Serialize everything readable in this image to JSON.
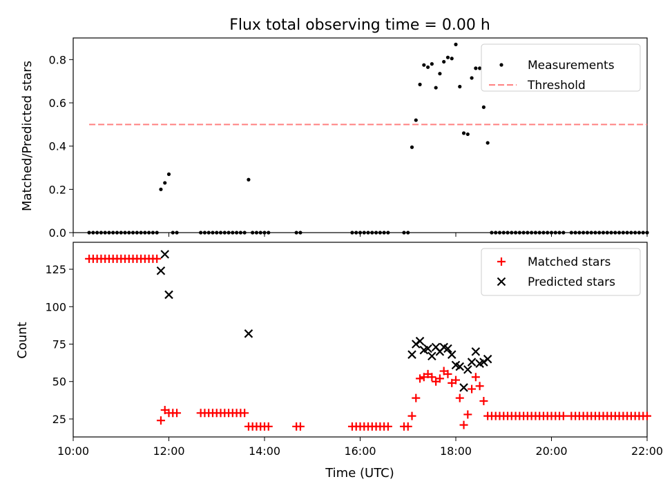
{
  "chart_data": [
    {
      "type": "scatter",
      "title": "Flux total observing time = 0.00 h",
      "xlabel": "",
      "ylabel": "Matched/Predicted stars",
      "xlim": [
        "10:00",
        "22:00"
      ],
      "ylim": [
        0,
        0.9
      ],
      "yticks": [
        "0.0",
        "0.2",
        "0.4",
        "0.6",
        "0.8"
      ],
      "legend_position": "top-right",
      "series": [
        {
          "name": "Measurements",
          "color": "#000000",
          "marker": "dot",
          "points": [
            [
              "10:20",
              0
            ],
            [
              "10:25",
              0
            ],
            [
              "10:30",
              0
            ],
            [
              "10:35",
              0
            ],
            [
              "10:40",
              0
            ],
            [
              "10:45",
              0
            ],
            [
              "10:50",
              0
            ],
            [
              "10:55",
              0
            ],
            [
              "11:00",
              0
            ],
            [
              "11:05",
              0
            ],
            [
              "11:10",
              0
            ],
            [
              "11:15",
              0
            ],
            [
              "11:20",
              0
            ],
            [
              "11:25",
              0
            ],
            [
              "11:30",
              0
            ],
            [
              "11:35",
              0
            ],
            [
              "11:40",
              0
            ],
            [
              "11:45",
              0
            ],
            [
              "11:50",
              0.2
            ],
            [
              "11:55",
              0.23
            ],
            [
              "12:00",
              0.27
            ],
            [
              "12:05",
              0
            ],
            [
              "12:10",
              0
            ],
            [
              "12:40",
              0
            ],
            [
              "12:45",
              0
            ],
            [
              "12:50",
              0
            ],
            [
              "12:55",
              0
            ],
            [
              "13:00",
              0
            ],
            [
              "13:05",
              0
            ],
            [
              "13:10",
              0
            ],
            [
              "13:15",
              0
            ],
            [
              "13:20",
              0
            ],
            [
              "13:25",
              0
            ],
            [
              "13:30",
              0
            ],
            [
              "13:35",
              0
            ],
            [
              "13:40",
              0.245
            ],
            [
              "13:45",
              0
            ],
            [
              "13:50",
              0
            ],
            [
              "13:55",
              0
            ],
            [
              "14:00",
              0
            ],
            [
              "14:05",
              0
            ],
            [
              "14:40",
              0
            ],
            [
              "14:45",
              0
            ],
            [
              "15:50",
              0
            ],
            [
              "15:55",
              0
            ],
            [
              "16:00",
              0
            ],
            [
              "16:05",
              0
            ],
            [
              "16:10",
              0
            ],
            [
              "16:15",
              0
            ],
            [
              "16:20",
              0
            ],
            [
              "16:25",
              0
            ],
            [
              "16:30",
              0
            ],
            [
              "16:35",
              0
            ],
            [
              "16:55",
              0
            ],
            [
              "17:00",
              0
            ],
            [
              "17:05",
              0.395
            ],
            [
              "17:10",
              0.52
            ],
            [
              "17:15",
              0.685
            ],
            [
              "17:20",
              0.775
            ],
            [
              "17:25",
              0.765
            ],
            [
              "17:30",
              0.78
            ],
            [
              "17:35",
              0.67
            ],
            [
              "17:40",
              0.735
            ],
            [
              "17:45",
              0.79
            ],
            [
              "17:50",
              0.81
            ],
            [
              "17:55",
              0.805
            ],
            [
              "18:00",
              0.87
            ],
            [
              "18:05",
              0.675
            ],
            [
              "18:10",
              0.46
            ],
            [
              "18:15",
              0.455
            ],
            [
              "18:20",
              0.715
            ],
            [
              "18:25",
              0.76
            ],
            [
              "18:30",
              0.76
            ],
            [
              "18:35",
              0.58
            ],
            [
              "18:40",
              0.415
            ],
            [
              "18:45",
              0
            ],
            [
              "18:50",
              0
            ],
            [
              "18:55",
              0
            ],
            [
              "19:00",
              0
            ],
            [
              "19:05",
              0
            ],
            [
              "19:10",
              0
            ],
            [
              "19:15",
              0
            ],
            [
              "19:20",
              0
            ],
            [
              "19:25",
              0
            ],
            [
              "19:30",
              0
            ],
            [
              "19:35",
              0
            ],
            [
              "19:40",
              0
            ],
            [
              "19:45",
              0
            ],
            [
              "19:50",
              0
            ],
            [
              "19:55",
              0
            ],
            [
              "20:00",
              0
            ],
            [
              "20:05",
              0
            ],
            [
              "20:10",
              0
            ],
            [
              "20:15",
              0
            ],
            [
              "20:25",
              0
            ],
            [
              "20:30",
              0
            ],
            [
              "20:35",
              0
            ],
            [
              "20:40",
              0
            ],
            [
              "20:45",
              0
            ],
            [
              "20:50",
              0
            ],
            [
              "20:55",
              0
            ],
            [
              "21:00",
              0
            ],
            [
              "21:05",
              0
            ],
            [
              "21:10",
              0
            ],
            [
              "21:15",
              0
            ],
            [
              "21:20",
              0
            ],
            [
              "21:25",
              0
            ],
            [
              "21:30",
              0
            ],
            [
              "21:35",
              0
            ],
            [
              "21:40",
              0
            ],
            [
              "21:45",
              0
            ],
            [
              "21:50",
              0
            ],
            [
              "21:55",
              0
            ],
            [
              "22:00",
              0
            ]
          ]
        },
        {
          "name": "Threshold",
          "color": "#ff8080",
          "line_style": "dashed",
          "points": [
            [
              "10:20",
              0.5
            ],
            [
              "22:00",
              0.5
            ]
          ]
        }
      ]
    },
    {
      "type": "scatter",
      "title": "",
      "xlabel": "Time (UTC)",
      "ylabel": "Count",
      "xlim": [
        "10:00",
        "22:00"
      ],
      "ylim": [
        13,
        143
      ],
      "yticks": [
        "25",
        "50",
        "75",
        "100",
        "125"
      ],
      "xticks": [
        "10:00",
        "12:00",
        "14:00",
        "16:00",
        "18:00",
        "20:00",
        "22:00"
      ],
      "legend_position": "top-right",
      "series": [
        {
          "name": "Matched stars",
          "color": "#ff0000",
          "marker": "plus",
          "points": [
            [
              "10:20",
              132
            ],
            [
              "10:25",
              132
            ],
            [
              "10:30",
              132
            ],
            [
              "10:35",
              132
            ],
            [
              "10:40",
              132
            ],
            [
              "10:45",
              132
            ],
            [
              "10:50",
              132
            ],
            [
              "10:55",
              132
            ],
            [
              "11:00",
              132
            ],
            [
              "11:05",
              132
            ],
            [
              "11:10",
              132
            ],
            [
              "11:15",
              132
            ],
            [
              "11:20",
              132
            ],
            [
              "11:25",
              132
            ],
            [
              "11:30",
              132
            ],
            [
              "11:35",
              132
            ],
            [
              "11:40",
              132
            ],
            [
              "11:45",
              132
            ],
            [
              "11:50",
              24
            ],
            [
              "11:55",
              31
            ],
            [
              "12:00",
              29
            ],
            [
              "12:05",
              29
            ],
            [
              "12:10",
              29
            ],
            [
              "12:40",
              29
            ],
            [
              "12:45",
              29
            ],
            [
              "12:50",
              29
            ],
            [
              "12:55",
              29
            ],
            [
              "13:00",
              29
            ],
            [
              "13:05",
              29
            ],
            [
              "13:10",
              29
            ],
            [
              "13:15",
              29
            ],
            [
              "13:20",
              29
            ],
            [
              "13:25",
              29
            ],
            [
              "13:30",
              29
            ],
            [
              "13:35",
              29
            ],
            [
              "13:40",
              20
            ],
            [
              "13:45",
              20
            ],
            [
              "13:50",
              20
            ],
            [
              "13:55",
              20
            ],
            [
              "14:00",
              20
            ],
            [
              "14:05",
              20
            ],
            [
              "14:40",
              20
            ],
            [
              "14:45",
              20
            ],
            [
              "15:50",
              20
            ],
            [
              "15:55",
              20
            ],
            [
              "16:00",
              20
            ],
            [
              "16:05",
              20
            ],
            [
              "16:10",
              20
            ],
            [
              "16:15",
              20
            ],
            [
              "16:20",
              20
            ],
            [
              "16:25",
              20
            ],
            [
              "16:30",
              20
            ],
            [
              "16:35",
              20
            ],
            [
              "16:55",
              20
            ],
            [
              "17:00",
              20
            ],
            [
              "17:05",
              27
            ],
            [
              "17:10",
              39
            ],
            [
              "17:15",
              52
            ],
            [
              "17:20",
              53
            ],
            [
              "17:25",
              55
            ],
            [
              "17:30",
              53
            ],
            [
              "17:35",
              50
            ],
            [
              "17:40",
              52
            ],
            [
              "17:45",
              57
            ],
            [
              "17:50",
              55
            ],
            [
              "17:55",
              49
            ],
            [
              "18:00",
              51
            ],
            [
              "18:05",
              39
            ],
            [
              "18:10",
              21
            ],
            [
              "18:15",
              28
            ],
            [
              "18:20",
              45
            ],
            [
              "18:25",
              53
            ],
            [
              "18:30",
              47
            ],
            [
              "18:35",
              37
            ],
            [
              "18:40",
              27
            ],
            [
              "18:45",
              27
            ],
            [
              "18:50",
              27
            ],
            [
              "18:55",
              27
            ],
            [
              "19:00",
              27
            ],
            [
              "19:05",
              27
            ],
            [
              "19:10",
              27
            ],
            [
              "19:15",
              27
            ],
            [
              "19:20",
              27
            ],
            [
              "19:25",
              27
            ],
            [
              "19:30",
              27
            ],
            [
              "19:35",
              27
            ],
            [
              "19:40",
              27
            ],
            [
              "19:45",
              27
            ],
            [
              "19:50",
              27
            ],
            [
              "19:55",
              27
            ],
            [
              "20:00",
              27
            ],
            [
              "20:05",
              27
            ],
            [
              "20:10",
              27
            ],
            [
              "20:15",
              27
            ],
            [
              "20:25",
              27
            ],
            [
              "20:30",
              27
            ],
            [
              "20:35",
              27
            ],
            [
              "20:40",
              27
            ],
            [
              "20:45",
              27
            ],
            [
              "20:50",
              27
            ],
            [
              "20:55",
              27
            ],
            [
              "21:00",
              27
            ],
            [
              "21:05",
              27
            ],
            [
              "21:10",
              27
            ],
            [
              "21:15",
              27
            ],
            [
              "21:20",
              27
            ],
            [
              "21:25",
              27
            ],
            [
              "21:30",
              27
            ],
            [
              "21:35",
              27
            ],
            [
              "21:40",
              27
            ],
            [
              "21:45",
              27
            ],
            [
              "21:50",
              27
            ],
            [
              "21:55",
              27
            ],
            [
              "22:00",
              27
            ]
          ]
        },
        {
          "name": "Predicted stars",
          "color": "#000000",
          "marker": "x",
          "points": [
            [
              "11:50",
              124
            ],
            [
              "11:55",
              135
            ],
            [
              "12:00",
              108
            ],
            [
              "13:40",
              82
            ],
            [
              "17:05",
              68
            ],
            [
              "17:10",
              75
            ],
            [
              "17:15",
              77
            ],
            [
              "17:20",
              71
            ],
            [
              "17:25",
              72
            ],
            [
              "17:30",
              67
            ],
            [
              "17:35",
              73
            ],
            [
              "17:40",
              70
            ],
            [
              "17:45",
              73
            ],
            [
              "17:50",
              72
            ],
            [
              "17:55",
              68
            ],
            [
              "18:00",
              61
            ],
            [
              "18:05",
              60
            ],
            [
              "18:10",
              46
            ],
            [
              "18:15",
              58
            ],
            [
              "18:20",
              63
            ],
            [
              "18:25",
              70
            ],
            [
              "18:30",
              62
            ],
            [
              "18:35",
              63
            ],
            [
              "18:40",
              65
            ]
          ]
        }
      ]
    }
  ]
}
